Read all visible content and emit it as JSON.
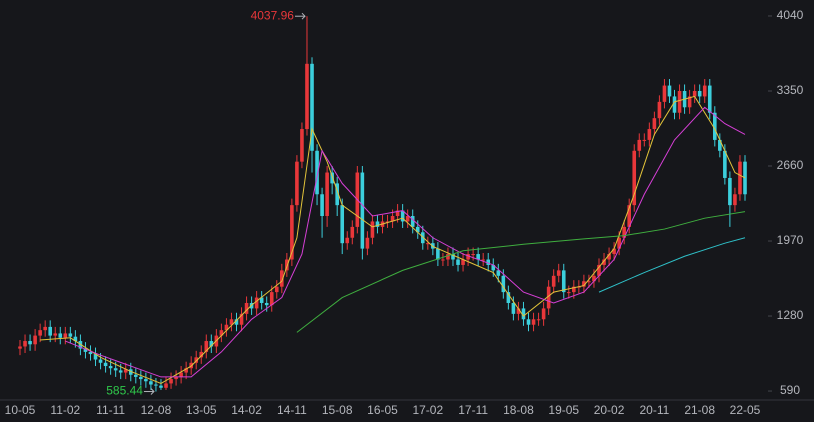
{
  "chart_data": {
    "type": "candlestick",
    "categories": [
      "10-05",
      null,
      null,
      null,
      null,
      null,
      null,
      null,
      null,
      "11-02",
      null,
      null,
      null,
      null,
      null,
      null,
      null,
      null,
      "11-11",
      null,
      null,
      null,
      null,
      null,
      null,
      null,
      null,
      "12-08",
      null,
      null,
      null,
      null,
      null,
      null,
      null,
      null,
      "13-05",
      null,
      null,
      null,
      null,
      null,
      null,
      null,
      null,
      "14-02",
      null,
      null,
      null,
      null,
      null,
      null,
      null,
      null,
      "14-11",
      null,
      null,
      null,
      null,
      null,
      null,
      null,
      null,
      "15-08",
      null,
      null,
      null,
      null,
      null,
      null,
      null,
      null,
      "16-05",
      null,
      null,
      null,
      null,
      null,
      null,
      null,
      null,
      "17-02",
      null,
      null,
      null,
      null,
      null,
      null,
      null,
      null,
      "17-11",
      null,
      null,
      null,
      null,
      null,
      null,
      null,
      null,
      "18-08",
      null,
      null,
      null,
      null,
      null,
      null,
      null,
      null,
      "19-05",
      null,
      null,
      null,
      null,
      null,
      null,
      null,
      null,
      "20-02",
      null,
      null,
      null,
      null,
      null,
      null,
      null,
      null,
      "20-11",
      null,
      null,
      null,
      null,
      null,
      null,
      null,
      null,
      "21-08",
      null,
      null,
      null,
      null,
      null,
      null,
      null,
      null,
      "22-05"
    ],
    "open": [
      980,
      1000,
      1050,
      1020,
      1100,
      1150,
      1180,
      1100,
      1120,
      1080,
      1120,
      1090,
      1050,
      980,
      950,
      930,
      880,
      850,
      820,
      800,
      780,
      760,
      790,
      740,
      720,
      700,
      680,
      650,
      640,
      620,
      660,
      700,
      720,
      760,
      800,
      850,
      900,
      950,
      1050,
      1000,
      1100,
      1150,
      1200,
      1250,
      1200,
      1300,
      1400,
      1350,
      1450,
      1400,
      1380,
      1500,
      1550,
      1700,
      1800,
      2300,
      2700,
      3000,
      3600,
      2800,
      2400,
      2200,
      2600,
      2500,
      2300,
      1950,
      2000,
      2100,
      2600,
      1900,
      2000,
      2150,
      2100,
      2150,
      2150,
      2200,
      2250,
      2150,
      2200,
      2100,
      2050,
      1950,
      1950,
      1900,
      1800,
      1800,
      1850,
      1800,
      1750,
      1800,
      1850,
      1850,
      1800,
      1800,
      1750,
      1700,
      1650,
      1500,
      1400,
      1300,
      1350,
      1250,
      1200,
      1250,
      1250,
      1350,
      1550,
      1650,
      1700,
      1500,
      1500,
      1550,
      1550,
      1600,
      1600,
      1650,
      1750,
      1800,
      1850,
      1900,
      2000,
      2100,
      2300,
      2800,
      2900,
      2900,
      3000,
      3100,
      3250,
      3400,
      3300,
      3150,
      3350,
      3200,
      3300,
      3350,
      3300,
      3400,
      3150,
      2900,
      2800,
      2550,
      2300,
      2400,
      2700
    ],
    "high": [
      1060,
      1110,
      1110,
      1160,
      1210,
      1240,
      1240,
      1180,
      1180,
      1180,
      1180,
      1150,
      1110,
      1040,
      1010,
      990,
      940,
      910,
      880,
      860,
      840,
      850,
      850,
      800,
      780,
      760,
      740,
      710,
      700,
      720,
      760,
      780,
      820,
      860,
      910,
      960,
      1010,
      1110,
      1110,
      1160,
      1210,
      1260,
      1310,
      1310,
      1360,
      1460,
      1460,
      1510,
      1510,
      1460,
      1560,
      1610,
      1760,
      1860,
      2360,
      2760,
      3060,
      4037.96,
      3660,
      2860,
      2460,
      2660,
      2660,
      2560,
      2360,
      2060,
      2160,
      2660,
      2660,
      2060,
      2210,
      2210,
      2210,
      2210,
      2260,
      2310,
      2310,
      2260,
      2260,
      2160,
      2110,
      2010,
      2010,
      1960,
      1860,
      1910,
      1910,
      1860,
      1860,
      1910,
      1910,
      1910,
      1860,
      1860,
      1810,
      1760,
      1710,
      1560,
      1460,
      1410,
      1410,
      1310,
      1310,
      1310,
      1410,
      1610,
      1710,
      1760,
      1760,
      1560,
      1610,
      1610,
      1660,
      1660,
      1710,
      1810,
      1860,
      1910,
      1960,
      2060,
      2160,
      2360,
      2860,
      2960,
      2960,
      3060,
      3160,
      3310,
      3460,
      3460,
      3360,
      3410,
      3410,
      3360,
      3410,
      3410,
      3460,
      3460,
      3210,
      2960,
      2860,
      2610,
      2460,
      2760,
      2760
    ],
    "low": [
      920,
      940,
      960,
      960,
      1040,
      1090,
      1040,
      1040,
      1020,
      1020,
      1030,
      990,
      920,
      890,
      870,
      820,
      790,
      760,
      740,
      720,
      700,
      700,
      680,
      660,
      640,
      620,
      600,
      585.44,
      600,
      600,
      610,
      640,
      660,
      700,
      740,
      790,
      840,
      890,
      940,
      940,
      1040,
      1090,
      1140,
      1140,
      1140,
      1240,
      1290,
      1290,
      1340,
      1320,
      1320,
      1440,
      1490,
      1640,
      1740,
      2240,
      2640,
      2940,
      2600,
      2300,
      2000,
      2100,
      2400,
      2200,
      1850,
      1890,
      1940,
      2040,
      1800,
      1840,
      1940,
      2040,
      2040,
      2090,
      2090,
      2140,
      2090,
      2090,
      2040,
      1990,
      1890,
      1890,
      1840,
      1740,
      1740,
      1740,
      1740,
      1690,
      1690,
      1740,
      1790,
      1740,
      1740,
      1690,
      1640,
      1590,
      1440,
      1340,
      1240,
      1240,
      1190,
      1140,
      1140,
      1190,
      1190,
      1290,
      1490,
      1590,
      1440,
      1440,
      1440,
      1490,
      1490,
      1540,
      1540,
      1590,
      1690,
      1740,
      1790,
      1840,
      1940,
      2040,
      2240,
      2740,
      2840,
      2840,
      2940,
      3040,
      3190,
      3240,
      3090,
      3090,
      3140,
      3140,
      3240,
      3240,
      3240,
      3090,
      2840,
      2740,
      2490,
      2100,
      2240,
      2340,
      2340
    ],
    "close": [
      1000,
      1050,
      1020,
      1100,
      1150,
      1180,
      1100,
      1120,
      1080,
      1120,
      1090,
      1050,
      980,
      950,
      930,
      880,
      850,
      820,
      800,
      780,
      760,
      790,
      740,
      720,
      700,
      680,
      650,
      640,
      620,
      660,
      700,
      720,
      760,
      800,
      850,
      900,
      950,
      1050,
      1000,
      1100,
      1150,
      1200,
      1250,
      1200,
      1300,
      1400,
      1350,
      1450,
      1400,
      1380,
      1500,
      1550,
      1700,
      1800,
      2300,
      2700,
      3000,
      3600,
      2800,
      2400,
      2200,
      2600,
      2500,
      2300,
      1950,
      2000,
      2100,
      2600,
      1900,
      2000,
      2150,
      2100,
      2150,
      2150,
      2200,
      2250,
      2150,
      2200,
      2100,
      2050,
      1950,
      1950,
      1900,
      1800,
      1800,
      1850,
      1800,
      1750,
      1800,
      1850,
      1850,
      1800,
      1800,
      1750,
      1700,
      1650,
      1500,
      1400,
      1300,
      1350,
      1250,
      1200,
      1250,
      1250,
      1350,
      1550,
      1650,
      1700,
      1500,
      1500,
      1550,
      1550,
      1600,
      1600,
      1650,
      1750,
      1800,
      1850,
      1900,
      2000,
      2100,
      2300,
      2800,
      2900,
      2900,
      3000,
      3100,
      3250,
      3400,
      3300,
      3150,
      3350,
      3200,
      3300,
      3350,
      3300,
      3400,
      3150,
      2900,
      2800,
      2550,
      2300,
      2400,
      2700,
      2400
    ],
    "up_color": "#e8373a",
    "down_color": "#3ccfdc",
    "moving_averages": [
      {
        "color": "#e3c43a",
        "x": [
          4,
          10,
          16,
          22,
          28,
          34,
          40,
          46,
          52,
          55,
          58,
          61,
          64,
          70,
          76,
          82,
          88,
          94,
          100,
          106,
          112,
          118,
          122,
          126,
          130,
          134,
          138,
          142,
          144
        ],
        "values": [
          1060,
          1080,
          900,
          770,
          660,
          820,
          1100,
          1380,
          1600,
          2000,
          3000,
          2700,
          2300,
          2100,
          2180,
          1920,
          1800,
          1680,
          1280,
          1500,
          1560,
          1900,
          2400,
          2950,
          3250,
          3300,
          3000,
          2600,
          2550
        ]
      },
      {
        "color": "#d63fd6",
        "x": [
          9,
          16,
          22,
          28,
          34,
          40,
          46,
          52,
          56,
          60,
          64,
          70,
          76,
          82,
          88,
          94,
          100,
          106,
          112,
          118,
          124,
          130,
          136,
          140,
          144
        ],
        "values": [
          1050,
          920,
          820,
          720,
          720,
          950,
          1250,
          1450,
          1850,
          2800,
          2500,
          2200,
          2250,
          2000,
          1850,
          1750,
          1500,
          1400,
          1500,
          1800,
          2400,
          2900,
          3200,
          3050,
          2950
        ]
      },
      {
        "color": "#3fae3f",
        "x": [
          55,
          64,
          76,
          88,
          100,
          112,
          120,
          128,
          136,
          144
        ],
        "values": [
          1130,
          1450,
          1700,
          1880,
          1940,
          1990,
          2020,
          2080,
          2180,
          2240
        ]
      },
      {
        "color": "#2fc0c8",
        "x": [
          115,
          124,
          132,
          140,
          144
        ],
        "values": [
          1500,
          1680,
          1830,
          1950,
          2000
        ]
      }
    ],
    "annotations": [
      {
        "path": "chart_data.high.57",
        "color": "#e8373a"
      },
      {
        "path": "chart_data.low.27",
        "color": "#2fc84a"
      }
    ],
    "ylim": [
      526,
      4187
    ],
    "yticks": [
      590,
      1280,
      1970,
      2660,
      3350,
      4040
    ],
    "grid": false
  }
}
